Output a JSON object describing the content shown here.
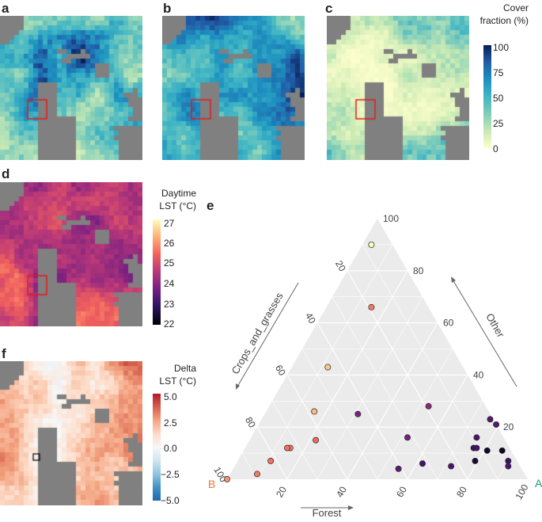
{
  "panels": {
    "a": "a",
    "b": "b",
    "c": "c",
    "d": "d",
    "e": "e",
    "f": "f"
  },
  "colorbars": {
    "cover": {
      "title_line1": "Cover",
      "title_line2": "fraction (%)",
      "ticks": [
        "100",
        "75",
        "50",
        "25",
        "0"
      ]
    },
    "daytime": {
      "title_line1": "Daytime",
      "title_line2": "LST (°C)",
      "ticks": [
        "27",
        "26",
        "25",
        "24",
        "23",
        "22"
      ]
    },
    "delta": {
      "title_line1": "Delta",
      "title_line2": "LST (°C)",
      "ticks": [
        "5.0",
        "2.5",
        "0.0",
        "−2.5",
        "−5.0"
      ]
    }
  },
  "colors": {
    "no_data": "#808080",
    "highlight_box": "#e41a1c",
    "ternary_bg": "#ebebeb",
    "label_A": "#1b9e77",
    "label_B": "#e07b39"
  },
  "chart_data": {
    "type": "ternary-scatter",
    "axes": {
      "forest": {
        "label": "Forest",
        "ticks": [
          "20",
          "40",
          "60",
          "80",
          "100"
        ]
      },
      "other": {
        "label": "Other",
        "ticks": [
          "20",
          "40",
          "60",
          "80",
          "100"
        ]
      },
      "crops": {
        "label": "Crops_and_grasses",
        "ticks": [
          "20",
          "40",
          "60",
          "80",
          "100"
        ]
      }
    },
    "corner_labels": {
      "right": "A",
      "left": "B"
    },
    "color_scale": "Daytime LST (°C), 22–27",
    "points": [
      {
        "forest": 3,
        "other": 90,
        "crops": 7,
        "lst": 27.0
      },
      {
        "forest": 15,
        "other": 66,
        "crops": 19,
        "lst": 25.6
      },
      {
        "forest": 12,
        "other": 43,
        "crops": 45,
        "lst": 26.4
      },
      {
        "forest": 16,
        "other": 26,
        "crops": 58,
        "lst": 26.3
      },
      {
        "forest": 31,
        "other": 25,
        "crops": 44,
        "lst": 23.8
      },
      {
        "forest": 53,
        "other": 28,
        "crops": 19,
        "lst": 24.0
      },
      {
        "forest": 52,
        "other": 16,
        "crops": 32,
        "lst": 23.7
      },
      {
        "forest": 22,
        "other": 15,
        "crops": 63,
        "lst": 25.4
      },
      {
        "forest": 15,
        "other": 12,
        "crops": 73,
        "lst": 25.6
      },
      {
        "forest": 14,
        "other": 12,
        "crops": 74,
        "lst": 25.5
      },
      {
        "forest": 11,
        "other": 7,
        "crops": 82,
        "lst": 25.5
      },
      {
        "forest": 9,
        "other": 2,
        "crops": 89,
        "lst": 25.6
      },
      {
        "forest": 0,
        "other": 0,
        "crops": 100,
        "lst": 25.9
      },
      {
        "forest": 55,
        "other": 4,
        "crops": 41,
        "lst": 23.4
      },
      {
        "forest": 62,
        "other": 6,
        "crops": 32,
        "lst": 23.1
      },
      {
        "forest": 76,
        "other": 23,
        "crops": 1,
        "lst": 23.3
      },
      {
        "forest": 79,
        "other": 21,
        "crops": 0,
        "lst": 23.3
      },
      {
        "forest": 75,
        "other": 16,
        "crops": 9,
        "lst": 23.2
      },
      {
        "forest": 76,
        "other": 12,
        "crops": 12,
        "lst": 23.0
      },
      {
        "forest": 77,
        "other": 12,
        "crops": 11,
        "lst": 23.1
      },
      {
        "forest": 81,
        "other": 11,
        "crops": 8,
        "lst": 22.4
      },
      {
        "forest": 86,
        "other": 11,
        "crops": 3,
        "lst": 22.3
      },
      {
        "forest": 79,
        "other": 7,
        "crops": 14,
        "lst": 22.5
      },
      {
        "forest": 72,
        "other": 5,
        "crops": 23,
        "lst": 23.2
      },
      {
        "forest": 90,
        "other": 7,
        "crops": 3,
        "lst": 23.0
      },
      {
        "forest": 91,
        "other": 5,
        "crops": 4,
        "lst": 23.2
      }
    ]
  }
}
